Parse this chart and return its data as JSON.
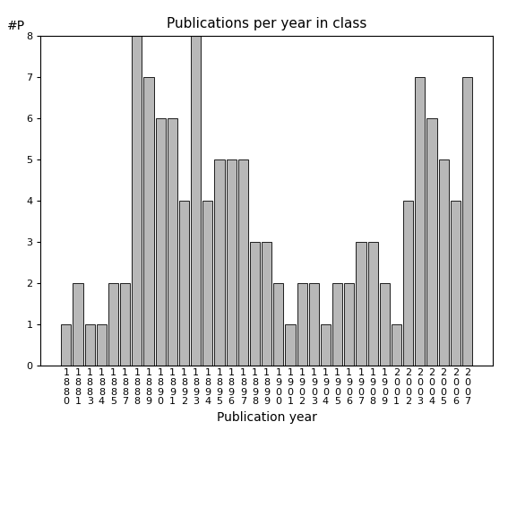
{
  "years": [
    "1880",
    "1881",
    "1883",
    "1884",
    "1885",
    "1887",
    "1888",
    "1889",
    "1890",
    "1891",
    "1892",
    "1893",
    "1894",
    "1895",
    "1896",
    "1897",
    "1898",
    "1899",
    "1900",
    "1901",
    "1902",
    "1903",
    "1904",
    "1905",
    "1906",
    "1907",
    "1908",
    "1909",
    "2001",
    "2002",
    "2003",
    "2004",
    "2005",
    "2006",
    "2007"
  ],
  "values": [
    1,
    2,
    1,
    1,
    2,
    2,
    8,
    7,
    6,
    6,
    4,
    8,
    4,
    5,
    5,
    5,
    3,
    3,
    2,
    1,
    2,
    2,
    1,
    2,
    2,
    3,
    3,
    2,
    1,
    4,
    7,
    6,
    5,
    4,
    7
  ],
  "title": "Publications per year in class",
  "xlabel": "Publication year",
  "ylabel": "#P",
  "bar_color": "#b8b8b8",
  "bar_edge_color": "#000000",
  "ylim": [
    0,
    8
  ],
  "yticks": [
    0,
    1,
    2,
    3,
    4,
    5,
    6,
    7,
    8
  ],
  "bg_color": "#ffffff",
  "title_fontsize": 11,
  "label_fontsize": 10,
  "tick_fontsize": 8
}
